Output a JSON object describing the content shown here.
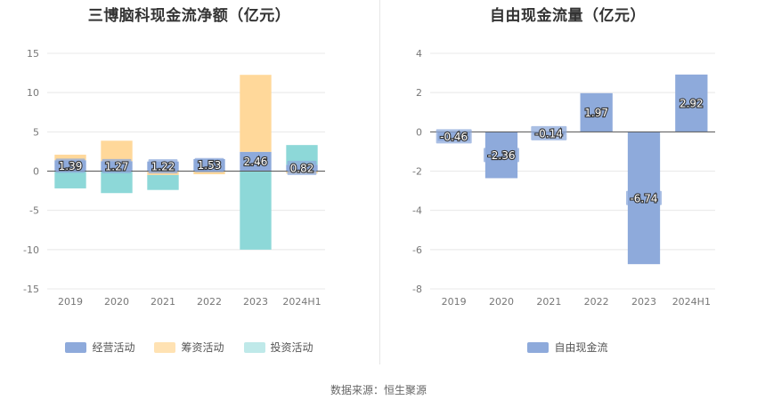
{
  "source": "数据来源：恒生聚源",
  "chart_data": [
    {
      "type": "bar",
      "stacked": true,
      "title": "三博脑科现金流净额（亿元）",
      "categories": [
        "2019",
        "2020",
        "2021",
        "2022",
        "2023",
        "2024H1"
      ],
      "ylim": [
        -15,
        15
      ],
      "yticks": [
        -15,
        -10,
        -5,
        0,
        5,
        10,
        15
      ],
      "grid": true,
      "legend_position": "bottom",
      "series": [
        {
          "name": "经营活动",
          "color": "#8eaadb",
          "values": [
            1.39,
            1.27,
            1.22,
            1.53,
            2.46,
            0.82
          ],
          "labels": [
            "1.39",
            "1.27",
            "1.22",
            "1.53",
            "2.46",
            "0.82"
          ]
        },
        {
          "name": "筹资活动",
          "color": "#ffd89a",
          "values": [
            0.7,
            2.6,
            -0.5,
            -0.4,
            9.8,
            -0.3
          ]
        },
        {
          "name": "投资活动",
          "color": "#8dd8d8",
          "values": [
            -2.2,
            -2.8,
            -1.9,
            0.0,
            -10.0,
            2.5
          ]
        }
      ]
    },
    {
      "type": "bar",
      "title": "自由现金流量（亿元）",
      "categories": [
        "2019",
        "2020",
        "2021",
        "2022",
        "2023",
        "2024H1"
      ],
      "ylim": [
        -8,
        4
      ],
      "yticks": [
        -8,
        -6,
        -4,
        -2,
        0,
        2,
        4
      ],
      "grid": true,
      "legend_position": "bottom",
      "series": [
        {
          "name": "自由现金流",
          "color": "#8eaadb",
          "values": [
            -0.46,
            -2.36,
            -0.14,
            1.97,
            -6.74,
            2.92
          ],
          "labels": [
            "-0.46",
            "-2.36",
            "-0.14",
            "1.97",
            "-6.74",
            "2.92"
          ]
        }
      ]
    }
  ]
}
